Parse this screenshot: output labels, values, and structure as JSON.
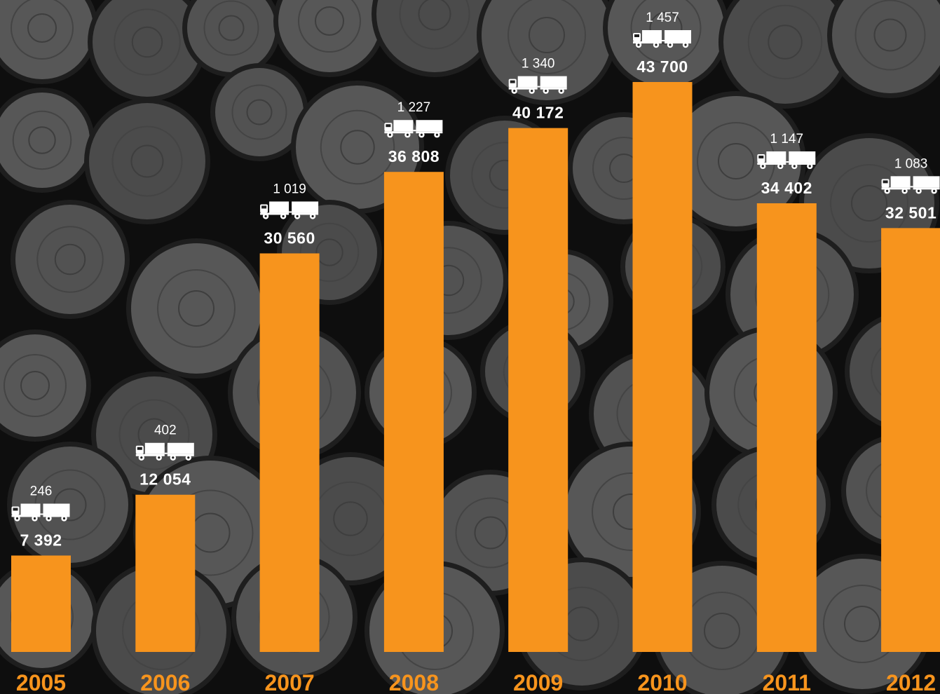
{
  "chart_data": {
    "type": "bar",
    "categories": [
      "2005",
      "2006",
      "2007",
      "2008",
      "2009",
      "2010",
      "2011",
      "2012"
    ],
    "series": [
      {
        "values": [
          7392,
          12054,
          30560,
          36808,
          40172,
          43700,
          34402,
          32501
        ]
      }
    ],
    "value_labels": [
      "7 392",
      "12 054",
      "30 560",
      "36 808",
      "40 172",
      "43 700",
      "34 402",
      "32 501"
    ],
    "truck_counts": [
      246,
      402,
      1019,
      1227,
      1340,
      1457,
      1147,
      1083
    ],
    "truck_labels": [
      "246",
      "402",
      "1 019",
      "1 227",
      "1 340",
      "1 457",
      "1 147",
      "1 083"
    ],
    "title": "",
    "xlabel": "",
    "ylabel": "",
    "ylim": [
      0,
      43700
    ],
    "grid": false,
    "legend": "none",
    "icon": "truck-trailer-icon",
    "colors": {
      "bar": "#f7941d",
      "year_label": "#f7941d",
      "text": "#ffffff",
      "background": "#101010",
      "logs": "#505050"
    }
  }
}
